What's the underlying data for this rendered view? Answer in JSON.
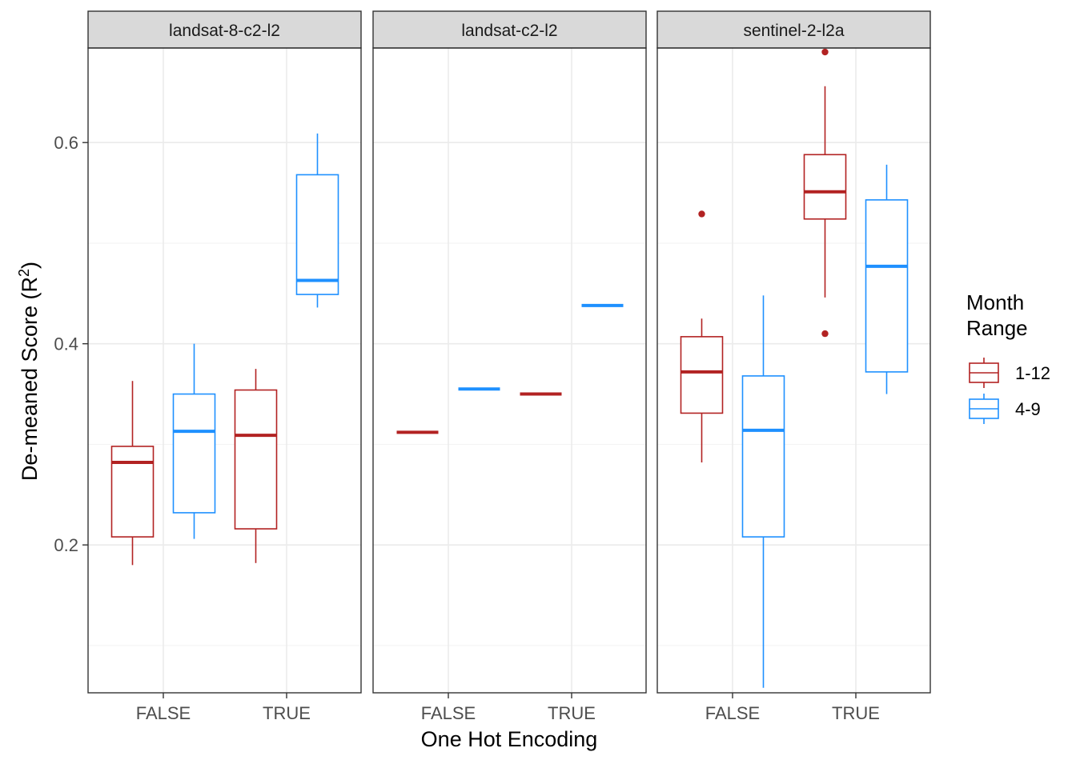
{
  "chart_data": {
    "type": "boxplot",
    "facets": [
      "landsat-8-c2-l2",
      "landsat-c2-l2",
      "sentinel-2-l2a"
    ],
    "categories": [
      "FALSE",
      "TRUE"
    ],
    "xlabel": "One Hot Encoding",
    "ylabel_main": "De-meaned Score (R",
    "ylabel_sup": "2",
    "ylabel_end": ")",
    "ylim": [
      0.053,
      0.694
    ],
    "yticks": [
      {
        "value": 0.2,
        "label": "0.2"
      },
      {
        "value": 0.4,
        "label": "0.4"
      },
      {
        "value": 0.6,
        "label": "0.6"
      }
    ],
    "legend": {
      "title_line1": "Month",
      "title_line2": "Range",
      "position": "right",
      "entries": [
        {
          "label": "1-12",
          "color": "#b22222"
        },
        {
          "label": "4-9",
          "color": "#1e90ff"
        }
      ]
    },
    "grid": true,
    "series": [
      {
        "name": "1-12",
        "color": "#b22222",
        "boxes": [
          {
            "facet": 0,
            "category": 0,
            "whisker_low": 0.18,
            "q1": 0.208,
            "median": 0.282,
            "q3": 0.298,
            "whisker_high": 0.363,
            "outliers": []
          },
          {
            "facet": 0,
            "category": 1,
            "whisker_low": 0.182,
            "q1": 0.216,
            "median": 0.309,
            "q3": 0.354,
            "whisker_high": 0.375,
            "outliers": []
          },
          {
            "facet": 1,
            "category": 0,
            "whisker_low": 0.311,
            "q1": 0.311,
            "median": 0.312,
            "q3": 0.312,
            "whisker_high": 0.313,
            "outliers": []
          },
          {
            "facet": 1,
            "category": 1,
            "whisker_low": 0.349,
            "q1": 0.349,
            "median": 0.35,
            "q3": 0.35,
            "whisker_high": 0.351,
            "outliers": []
          },
          {
            "facet": 2,
            "category": 0,
            "whisker_low": 0.282,
            "q1": 0.331,
            "median": 0.372,
            "q3": 0.407,
            "whisker_high": 0.425,
            "outliers": [
              0.529
            ]
          },
          {
            "facet": 2,
            "category": 1,
            "whisker_low": 0.446,
            "q1": 0.524,
            "median": 0.551,
            "q3": 0.588,
            "whisker_high": 0.656,
            "outliers": [
              0.41,
              0.69
            ]
          }
        ]
      },
      {
        "name": "4-9",
        "color": "#1e90ff",
        "boxes": [
          {
            "facet": 0,
            "category": 0,
            "whisker_low": 0.206,
            "q1": 0.232,
            "median": 0.313,
            "q3": 0.35,
            "whisker_high": 0.4,
            "outliers": []
          },
          {
            "facet": 0,
            "category": 1,
            "whisker_low": 0.436,
            "q1": 0.449,
            "median": 0.463,
            "q3": 0.568,
            "whisker_high": 0.609,
            "outliers": []
          },
          {
            "facet": 1,
            "category": 0,
            "whisker_low": 0.354,
            "q1": 0.354,
            "median": 0.355,
            "q3": 0.355,
            "whisker_high": 0.356,
            "outliers": []
          },
          {
            "facet": 1,
            "category": 1,
            "whisker_low": 0.437,
            "q1": 0.437,
            "median": 0.438,
            "q3": 0.438,
            "whisker_high": 0.439,
            "outliers": []
          },
          {
            "facet": 2,
            "category": 0,
            "whisker_low": 0.058,
            "q1": 0.208,
            "median": 0.314,
            "q3": 0.368,
            "whisker_high": 0.448,
            "outliers": []
          },
          {
            "facet": 2,
            "category": 1,
            "whisker_low": 0.35,
            "q1": 0.372,
            "median": 0.477,
            "q3": 0.543,
            "whisker_high": 0.578,
            "outliers": []
          }
        ]
      }
    ]
  }
}
